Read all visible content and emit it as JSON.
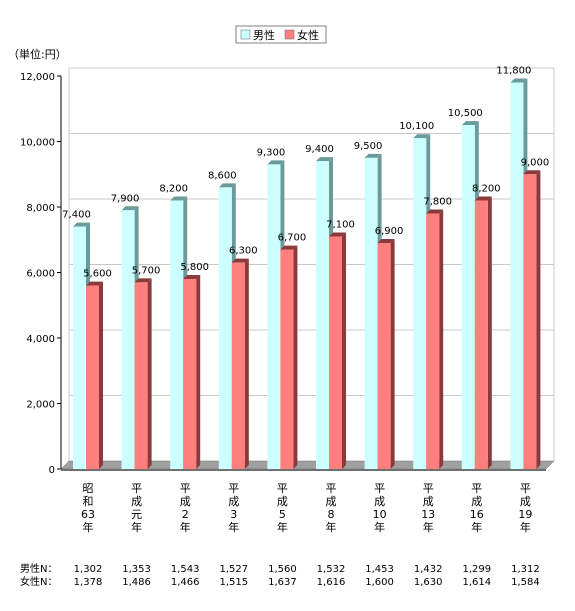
{
  "chart_data": {
    "type": "bar",
    "unit_label": "（単位:円）",
    "categories": [
      [
        "昭",
        "和",
        "63",
        "年"
      ],
      [
        "平",
        "成",
        "元",
        "年"
      ],
      [
        "平",
        "成",
        "2",
        "年"
      ],
      [
        "平",
        "成",
        "3",
        "年"
      ],
      [
        "平",
        "成",
        "5",
        "年"
      ],
      [
        "平",
        "成",
        "8",
        "年"
      ],
      [
        "平",
        "成",
        "10",
        "年"
      ],
      [
        "平",
        "成",
        "13",
        "年"
      ],
      [
        "平",
        "成",
        "16",
        "年"
      ],
      [
        "平",
        "成",
        "19",
        "年"
      ]
    ],
    "series": [
      {
        "name": "男性",
        "color": "#ccffff",
        "side_color": "#6b9a9a",
        "values": [
          7400,
          7900,
          8200,
          8600,
          9300,
          9400,
          9500,
          10100,
          10500,
          11800
        ],
        "labels": [
          "7,400",
          "7,900",
          "8,200",
          "8,600",
          "9,300",
          "9,400",
          "9,500",
          "10,100",
          "10,500",
          "11,800"
        ]
      },
      {
        "name": "女性",
        "color": "#ff7f7f",
        "side_color": "#8a3a3a",
        "values": [
          5600,
          5700,
          5800,
          6300,
          6700,
          7100,
          6900,
          7800,
          8200,
          9000
        ],
        "labels": [
          "5,600",
          "5,700",
          "5,800",
          "6,300",
          "6,700",
          "7,100",
          "6,900",
          "7,800",
          "8,200",
          "9,000"
        ]
      }
    ],
    "ylim": [
      0,
      12000
    ],
    "yticks": [
      0,
      2000,
      4000,
      6000,
      8000,
      10000,
      12000
    ],
    "ytick_labels": [
      "0",
      "2,000",
      "4,000",
      "6,000",
      "8,000",
      "10,000",
      "12,000"
    ],
    "grid": true,
    "legend_position": "top-center",
    "sample_sizes": [
      {
        "label": "男性N：",
        "values": [
          "1,302",
          "1,353",
          "1,543",
          "1,527",
          "1,560",
          "1,532",
          "1,453",
          "1,432",
          "1,299",
          "1,312"
        ]
      },
      {
        "label": "女性N：",
        "values": [
          "1,378",
          "1,486",
          "1,466",
          "1,515",
          "1,637",
          "1,616",
          "1,600",
          "1,630",
          "1,614",
          "1,584"
        ]
      }
    ]
  }
}
